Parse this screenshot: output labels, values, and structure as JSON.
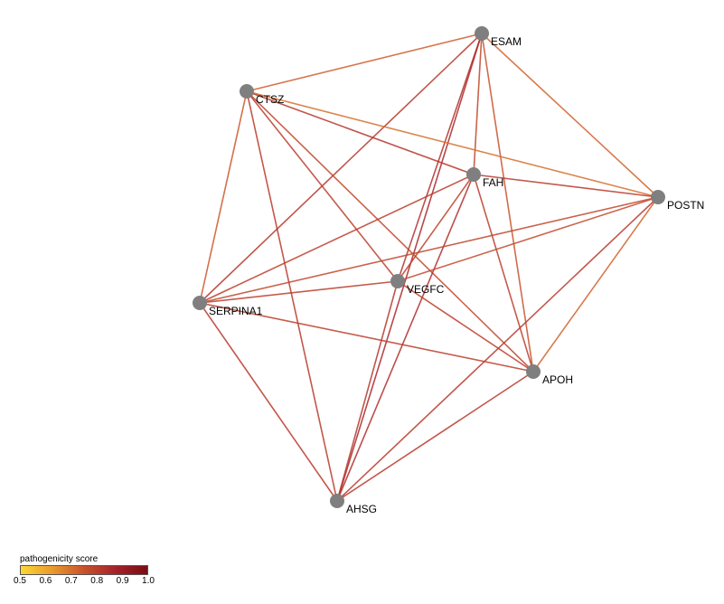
{
  "nodes": [
    {
      "id": "ESAM",
      "label": "ESAM"
    },
    {
      "id": "CTSZ",
      "label": "CTSZ"
    },
    {
      "id": "FAH",
      "label": "FAH"
    },
    {
      "id": "POSTN",
      "label": "POSTN"
    },
    {
      "id": "VEGFC",
      "label": "VEGFC"
    },
    {
      "id": "SERPINA1",
      "label": "SERPINA1"
    },
    {
      "id": "APOH",
      "label": "APOH"
    },
    {
      "id": "AHSG",
      "label": "AHSG"
    }
  ],
  "edges": [
    {
      "source": "ESAM",
      "target": "CTSZ",
      "score": 0.73
    },
    {
      "source": "ESAM",
      "target": "POSTN",
      "score": 0.72
    },
    {
      "source": "ESAM",
      "target": "FAH",
      "score": 0.78
    },
    {
      "source": "ESAM",
      "target": "VEGFC",
      "score": 0.83
    },
    {
      "source": "ESAM",
      "target": "SERPINA1",
      "score": 0.82
    },
    {
      "source": "ESAM",
      "target": "APOH",
      "score": 0.75
    },
    {
      "source": "ESAM",
      "target": "AHSG",
      "score": 0.86
    },
    {
      "source": "CTSZ",
      "target": "POSTN",
      "score": 0.7
    },
    {
      "source": "CTSZ",
      "target": "FAH",
      "score": 0.82
    },
    {
      "source": "CTSZ",
      "target": "SERPINA1",
      "score": 0.74
    },
    {
      "source": "CTSZ",
      "target": "VEGFC",
      "score": 0.8
    },
    {
      "source": "CTSZ",
      "target": "APOH",
      "score": 0.78
    },
    {
      "source": "CTSZ",
      "target": "AHSG",
      "score": 0.81
    },
    {
      "source": "FAH",
      "target": "POSTN",
      "score": 0.81
    },
    {
      "source": "FAH",
      "target": "SERPINA1",
      "score": 0.8
    },
    {
      "source": "FAH",
      "target": "APOH",
      "score": 0.8
    },
    {
      "source": "FAH",
      "target": "AHSG",
      "score": 0.84
    },
    {
      "source": "FAH",
      "target": "VEGFC",
      "score": 0.79
    },
    {
      "source": "POSTN",
      "target": "SERPINA1",
      "score": 0.78
    },
    {
      "source": "POSTN",
      "target": "VEGFC",
      "score": 0.77
    },
    {
      "source": "POSTN",
      "target": "APOH",
      "score": 0.72
    },
    {
      "source": "POSTN",
      "target": "AHSG",
      "score": 0.81
    },
    {
      "source": "VEGFC",
      "target": "SERPINA1",
      "score": 0.8
    },
    {
      "source": "VEGFC",
      "target": "APOH",
      "score": 0.8
    },
    {
      "source": "VEGFC",
      "target": "AHSG",
      "score": 0.82
    },
    {
      "source": "SERPINA1",
      "target": "APOH",
      "score": 0.8
    },
    {
      "source": "SERPINA1",
      "target": "AHSG",
      "score": 0.81
    },
    {
      "source": "APOH",
      "target": "AHSG",
      "score": 0.81
    }
  ],
  "legend": {
    "title": "pathogenicity score",
    "ticks": [
      "0.5",
      "0.6",
      "0.7",
      "0.8",
      "0.9",
      "1.0"
    ],
    "range": [
      0.5,
      1.0
    ],
    "colors": [
      "#fdd835",
      "#e99a2c",
      "#c9512c",
      "#a5222a",
      "#7a0c14"
    ]
  },
  "node_color": "#7f7f7f"
}
